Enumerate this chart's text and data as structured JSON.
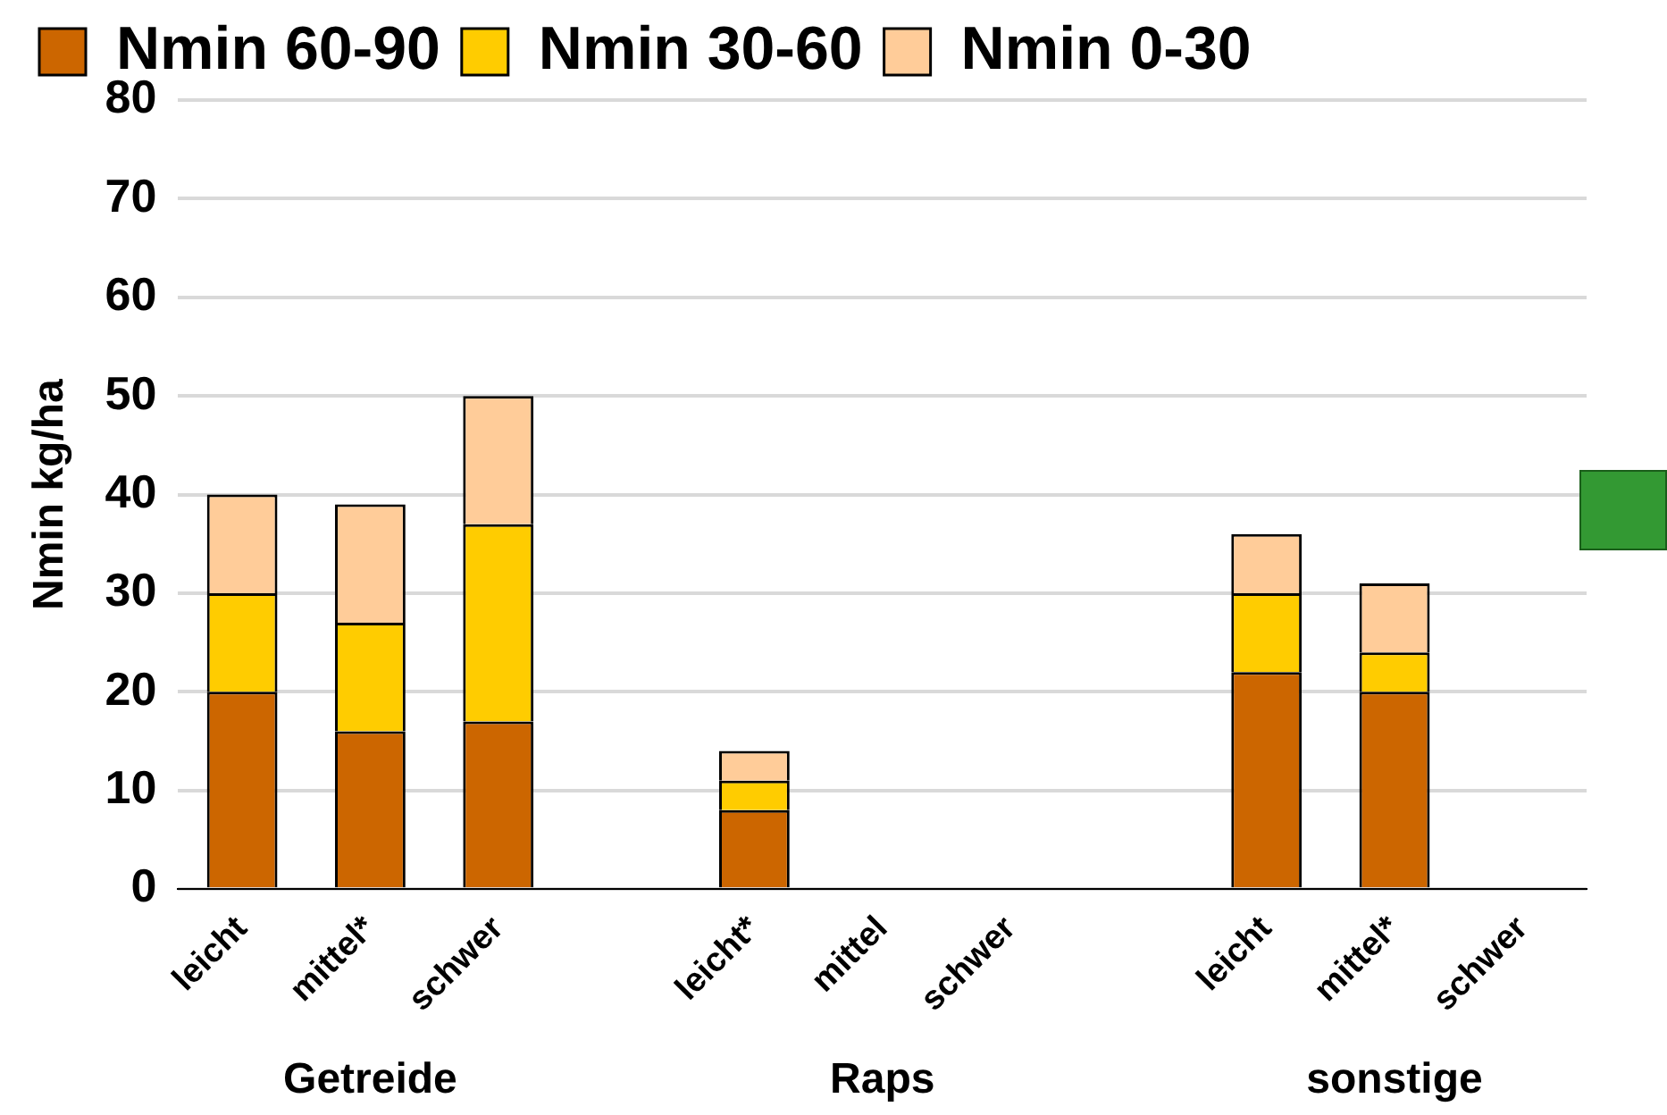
{
  "chart_data": {
    "type": "bar",
    "stacked": true,
    "ylabel": "Nmin kg/ha",
    "categories": [
      "leicht",
      "mittel*",
      "schwer",
      null,
      "leicht*",
      "mittel",
      "schwer",
      null,
      "leicht",
      "mittel*",
      "schwer"
    ],
    "series": [
      {
        "name": "Nmin 60-90",
        "color": "#cc6600",
        "values": [
          20,
          16,
          17,
          null,
          8,
          0,
          0,
          null,
          22,
          20,
          0
        ]
      },
      {
        "name": "Nmin 30-60",
        "color": "#ffcc00",
        "values": [
          10,
          11,
          20,
          null,
          3,
          0,
          0,
          null,
          8,
          4,
          0
        ]
      },
      {
        "name": "Nmin 0-30",
        "color": "#ffcc99",
        "values": [
          10,
          12,
          13,
          null,
          3,
          0,
          0,
          null,
          6,
          7,
          0
        ]
      }
    ],
    "ylim": [
      0,
      80
    ],
    "yticks": [
      0,
      10,
      20,
      30,
      40,
      50,
      60,
      70,
      80
    ],
    "grid": "y",
    "legend": "top",
    "annotations": [
      "Getreide",
      "Raps",
      "sonstige"
    ]
  }
}
